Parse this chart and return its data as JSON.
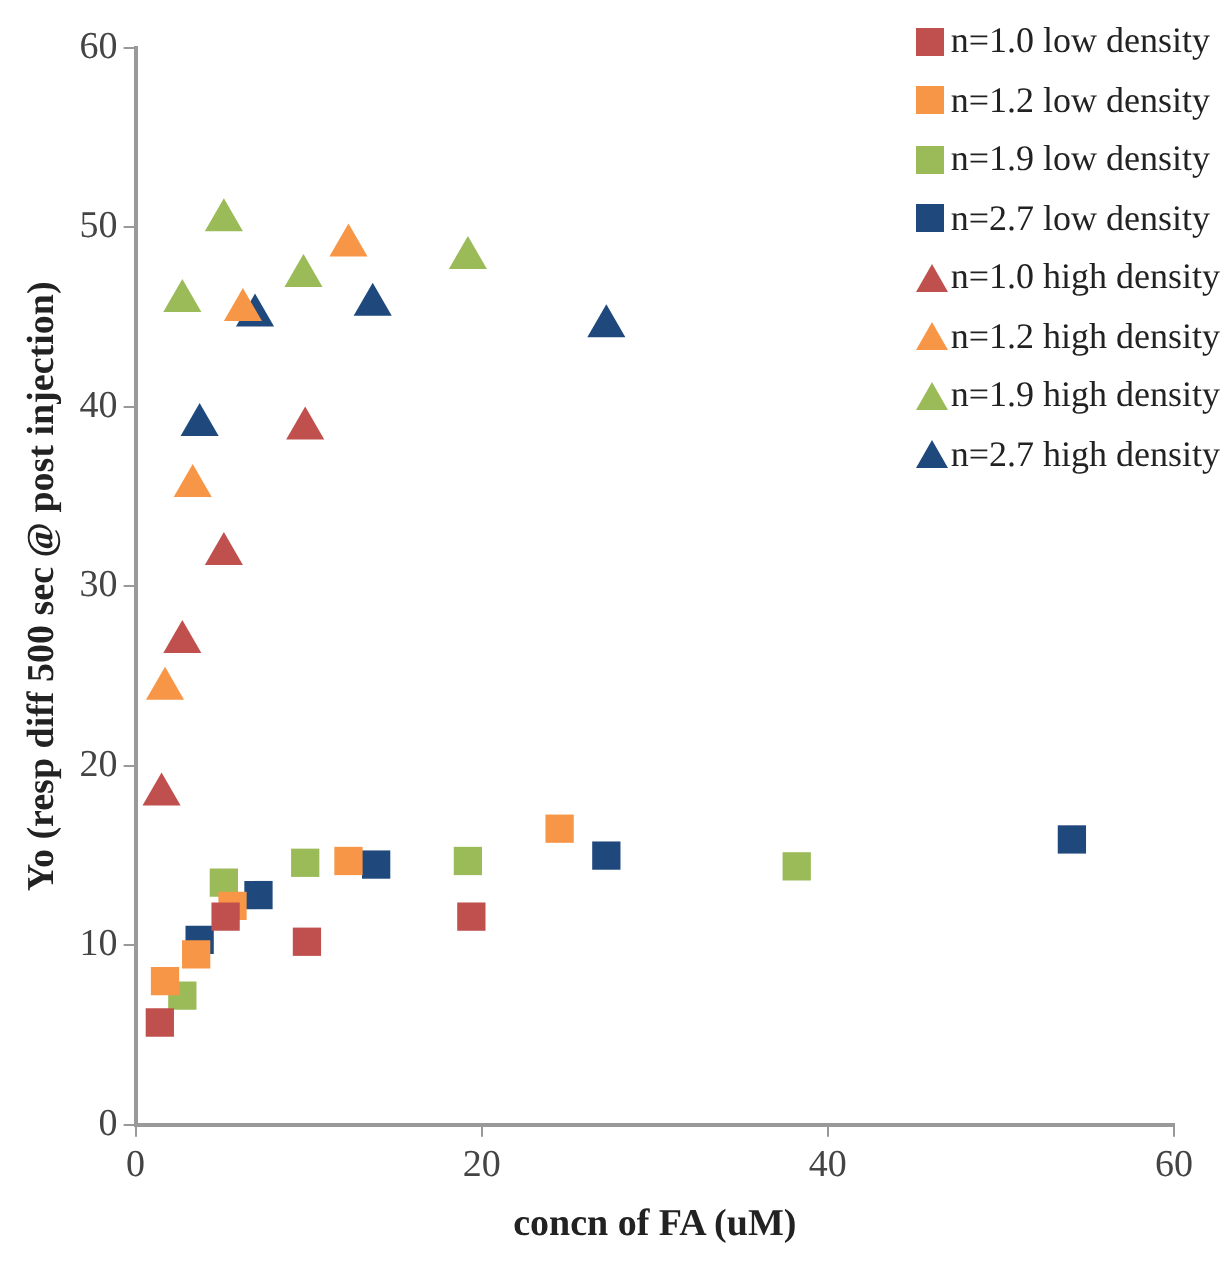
{
  "chart_data": {
    "type": "scatter",
    "xlabel": "concn of FA (uM)",
    "ylabel": "Yo (resp diff 500 sec @ post injection)",
    "xlim": [
      0,
      60
    ],
    "xticks": [
      0,
      20,
      40,
      60
    ],
    "ylim": [
      0,
      60
    ],
    "yticks": [
      0,
      10,
      20,
      30,
      40,
      50,
      60
    ],
    "grid": false,
    "legend": "top right",
    "series": [
      {
        "name": "n=1.0 low density",
        "color": "#c0504d",
        "marker": "square",
        "x": [
          1.4,
          5.2,
          9.9,
          19.4
        ],
        "values": [
          5.7,
          11.6,
          10.2,
          11.6
        ]
      },
      {
        "name": "n=1.2 low density",
        "color": "#f79646",
        "marker": "square",
        "x": [
          1.7,
          3.5,
          5.6,
          12.3,
          24.5
        ],
        "values": [
          8.0,
          9.5,
          12.2,
          14.7,
          16.5
        ]
      },
      {
        "name": "n=1.9 low density",
        "color": "#9bbb59",
        "marker": "square",
        "x": [
          2.7,
          5.1,
          9.8,
          19.2,
          38.2
        ],
        "values": [
          7.2,
          13.5,
          14.6,
          14.7,
          14.4
        ]
      },
      {
        "name": "n=2.7 low density",
        "color": "#1f497d",
        "marker": "square",
        "x": [
          3.7,
          7.1,
          13.9,
          27.2,
          54.1
        ],
        "values": [
          10.3,
          12.8,
          14.5,
          15.0,
          15.9
        ]
      },
      {
        "name": "n=1.0 high density",
        "color": "#c0504d",
        "marker": "triangle",
        "x": [
          1.5,
          2.7,
          5.1,
          9.8
        ],
        "values": [
          18.4,
          26.9,
          31.8,
          38.8
        ]
      },
      {
        "name": "n=1.2 high density",
        "color": "#f79646",
        "marker": "triangle",
        "x": [
          1.7,
          3.3,
          6.2,
          12.3
        ],
        "values": [
          24.3,
          35.6,
          45.4,
          49.0
        ]
      },
      {
        "name": "n=1.9 high density",
        "color": "#9bbb59",
        "marker": "triangle",
        "x": [
          2.7,
          5.1,
          9.7,
          19.2
        ],
        "values": [
          45.9,
          50.4,
          47.3,
          48.3
        ]
      },
      {
        "name": "n=2.7 high density",
        "color": "#1f497d",
        "marker": "triangle",
        "x": [
          3.7,
          6.9,
          13.7,
          27.2
        ],
        "values": [
          39.0,
          45.1,
          45.7,
          44.5
        ]
      }
    ]
  }
}
